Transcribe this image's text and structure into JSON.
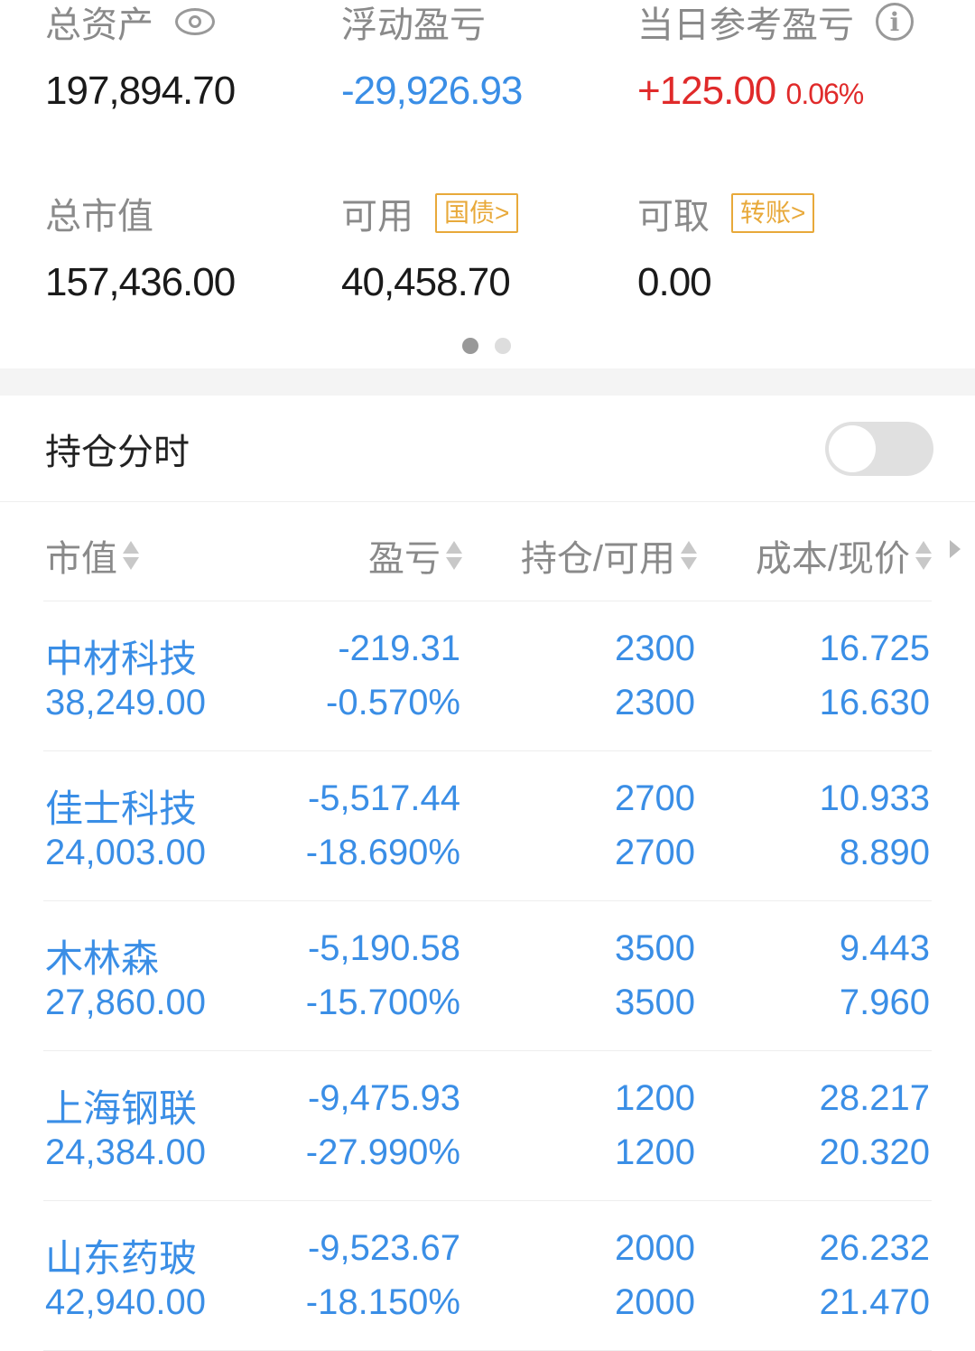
{
  "summary": {
    "total_assets": {
      "label": "总资产",
      "value": "197,894.70"
    },
    "floating_pl": {
      "label": "浮动盈亏",
      "value": "-29,926.93"
    },
    "daily_pl": {
      "label": "当日参考盈亏",
      "value": "+125.00",
      "pct": "0.06%"
    },
    "market_value": {
      "label": "总市值",
      "value": "157,436.00"
    },
    "available": {
      "label": "可用",
      "tag": "国债>",
      "value": "40,458.70"
    },
    "withdrawable": {
      "label": "可取",
      "tag": "转账>",
      "value": "0.00"
    }
  },
  "colors": {
    "loss": "#3a8ee6",
    "gain": "#e02a2a",
    "tag": "#e8a93a"
  },
  "position_timeshare": {
    "label": "持仓分时",
    "toggle": false
  },
  "table": {
    "headers": [
      "市值",
      "盈亏",
      "持仓/可用",
      "成本/现价"
    ],
    "rows": [
      {
        "name": "中材科技",
        "mv": "38,249.00",
        "pl": "-219.31",
        "plpct": "-0.570%",
        "hold": "2300",
        "avail": "2300",
        "cost": "16.725",
        "price": "16.630"
      },
      {
        "name": "佳士科技",
        "mv": "24,003.00",
        "pl": "-5,517.44",
        "plpct": "-18.690%",
        "hold": "2700",
        "avail": "2700",
        "cost": "10.933",
        "price": "8.890"
      },
      {
        "name": "木林森",
        "mv": "27,860.00",
        "pl": "-5,190.58",
        "plpct": "-15.700%",
        "hold": "3500",
        "avail": "3500",
        "cost": "9.443",
        "price": "7.960"
      },
      {
        "name": "上海钢联",
        "mv": "24,384.00",
        "pl": "-9,475.93",
        "plpct": "-27.990%",
        "hold": "1200",
        "avail": "1200",
        "cost": "28.217",
        "price": "20.320"
      },
      {
        "name": "山东药玻",
        "mv": "42,940.00",
        "pl": "-9,523.67",
        "plpct": "-18.150%",
        "hold": "2000",
        "avail": "2000",
        "cost": "26.232",
        "price": "21.470"
      }
    ]
  }
}
